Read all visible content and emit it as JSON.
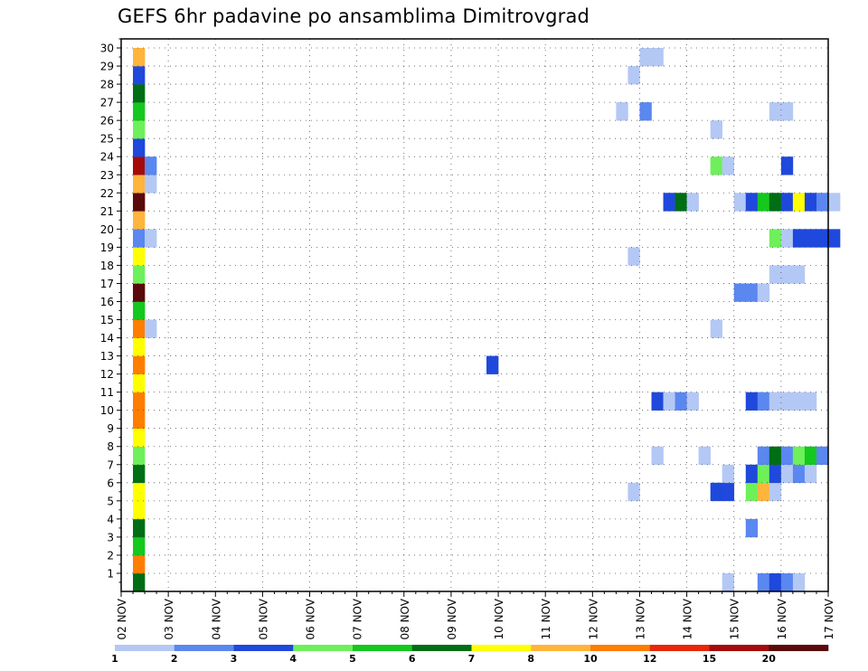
{
  "chart_data": {
    "type": "heatmap",
    "title": "GEFS 6hr padavine po ansamblima Dimitrovgrad",
    "y_tick_labels": [
      "1",
      "2",
      "3",
      "4",
      "5",
      "6",
      "7",
      "8",
      "9",
      "10",
      "11",
      "12",
      "13",
      "14",
      "15",
      "16",
      "17",
      "18",
      "19",
      "20",
      "21",
      "22",
      "23",
      "24",
      "25",
      "26",
      "27",
      "28",
      "29",
      "30"
    ],
    "x_tick_labels": [
      "02 NOV",
      "03 NOV",
      "04 NOV",
      "05 NOV",
      "06 NOV",
      "07 NOV",
      "08 NOV",
      "09 NOV",
      "10 NOV",
      "11 NOV",
      "12 NOV",
      "13 NOV",
      "14 NOV",
      "15 NOV",
      "16 NOV",
      "17 NOV"
    ],
    "grid": true,
    "legend_placement": "bottom",
    "colorbar": {
      "labels": [
        "1",
        "2",
        "3",
        "4",
        "5",
        "6",
        "7",
        "8",
        "10",
        "12",
        "15",
        "20"
      ],
      "colors": [
        "#b4c8f5",
        "#5a87f0",
        "#1f48dc",
        "#6ef05a",
        "#14c81e",
        "#006e14",
        "#ffff00",
        "#ffb43c",
        "#ff7d00",
        "#e6280a",
        "#a50a0a",
        "#5a0a0a"
      ]
    },
    "members_ylim": [
      0,
      30
    ],
    "time_range": [
      "02 NOV",
      "17 NOV"
    ],
    "cells": [
      {
        "m": 0,
        "s": 1,
        "v": 5
      },
      {
        "m": 1,
        "s": 1,
        "v": 8
      },
      {
        "m": 2,
        "s": 1,
        "v": 4
      },
      {
        "m": 3,
        "s": 1,
        "v": 5
      },
      {
        "m": 4,
        "s": 1,
        "v": 6
      },
      {
        "m": 5,
        "s": 1,
        "v": 6
      },
      {
        "m": 6,
        "s": 1,
        "v": 5
      },
      {
        "m": 7,
        "s": 1,
        "v": 3
      },
      {
        "m": 8,
        "s": 1,
        "v": 6
      },
      {
        "m": 9,
        "s": 1,
        "v": 8
      },
      {
        "m": 10,
        "s": 1,
        "v": 8
      },
      {
        "m": 11,
        "s": 1,
        "v": 6
      },
      {
        "m": 12,
        "s": 1,
        "v": 8
      },
      {
        "m": 13,
        "s": 1,
        "v": 6
      },
      {
        "m": 14,
        "s": 1,
        "v": 8
      },
      {
        "m": 15,
        "s": 1,
        "v": 4
      },
      {
        "m": 16,
        "s": 1,
        "v": 11
      },
      {
        "m": 17,
        "s": 1,
        "v": 3
      },
      {
        "m": 18,
        "s": 1,
        "v": 6
      },
      {
        "m": 19,
        "s": 1,
        "v": 1
      },
      {
        "m": 20,
        "s": 1,
        "v": 7
      },
      {
        "m": 21,
        "s": 1,
        "v": 11
      },
      {
        "m": 22,
        "s": 1,
        "v": 7
      },
      {
        "m": 23,
        "s": 1,
        "v": 10
      },
      {
        "m": 24,
        "s": 1,
        "v": 2
      },
      {
        "m": 25,
        "s": 1,
        "v": 3
      },
      {
        "m": 26,
        "s": 1,
        "v": 4
      },
      {
        "m": 27,
        "s": 1,
        "v": 5
      },
      {
        "m": 28,
        "s": 1,
        "v": 2
      },
      {
        "m": 29,
        "s": 1,
        "v": 7
      },
      {
        "m": 14,
        "s": 2,
        "v": 0
      },
      {
        "m": 19,
        "s": 2,
        "v": 0
      },
      {
        "m": 22,
        "s": 2,
        "v": 0
      },
      {
        "m": 23,
        "s": 2,
        "v": 1
      },
      {
        "m": 12,
        "s": 31,
        "v": 2
      },
      {
        "m": 26,
        "s": 42,
        "v": 0
      },
      {
        "m": 26,
        "s": 44,
        "v": 1
      },
      {
        "m": 28,
        "s": 43,
        "v": 0
      },
      {
        "m": 29,
        "s": 44,
        "v": 0
      },
      {
        "m": 29,
        "s": 45,
        "v": 0
      },
      {
        "m": 18,
        "s": 43,
        "v": 0
      },
      {
        "m": 5,
        "s": 43,
        "v": 0
      },
      {
        "m": 10,
        "s": 45,
        "v": 2
      },
      {
        "m": 10,
        "s": 46,
        "v": 0
      },
      {
        "m": 10,
        "s": 47,
        "v": 1
      },
      {
        "m": 10,
        "s": 48,
        "v": 0
      },
      {
        "m": 7,
        "s": 45,
        "v": 0
      },
      {
        "m": 21,
        "s": 46,
        "v": 2
      },
      {
        "m": 21,
        "s": 47,
        "v": 5
      },
      {
        "m": 21,
        "s": 48,
        "v": 0
      },
      {
        "m": 7,
        "s": 49,
        "v": 0
      },
      {
        "m": 25,
        "s": 50,
        "v": 0
      },
      {
        "m": 23,
        "s": 50,
        "v": 3
      },
      {
        "m": 23,
        "s": 51,
        "v": 0
      },
      {
        "m": 14,
        "s": 50,
        "v": 0
      },
      {
        "m": 5,
        "s": 50,
        "v": 2
      },
      {
        "m": 5,
        "s": 51,
        "v": 2
      },
      {
        "m": 6,
        "s": 51,
        "v": 0
      },
      {
        "m": 0,
        "s": 51,
        "v": 0
      },
      {
        "m": 21,
        "s": 52,
        "v": 0
      },
      {
        "m": 16,
        "s": 52,
        "v": 1
      },
      {
        "m": 16,
        "s": 53,
        "v": 1
      },
      {
        "m": 16,
        "s": 54,
        "v": 0
      },
      {
        "m": 21,
        "s": 53,
        "v": 2
      },
      {
        "m": 21,
        "s": 54,
        "v": 4
      },
      {
        "m": 21,
        "s": 55,
        "v": 5
      },
      {
        "m": 21,
        "s": 56,
        "v": 2
      },
      {
        "m": 21,
        "s": 57,
        "v": 6
      },
      {
        "m": 21,
        "s": 58,
        "v": 2
      },
      {
        "m": 21,
        "s": 59,
        "v": 1
      },
      {
        "m": 21,
        "s": 60,
        "v": 0
      },
      {
        "m": 10,
        "s": 53,
        "v": 2
      },
      {
        "m": 10,
        "s": 54,
        "v": 1
      },
      {
        "m": 10,
        "s": 55,
        "v": 0
      },
      {
        "m": 10,
        "s": 56,
        "v": 0
      },
      {
        "m": 10,
        "s": 57,
        "v": 0
      },
      {
        "m": 10,
        "s": 58,
        "v": 0
      },
      {
        "m": 5,
        "s": 53,
        "v": 3
      },
      {
        "m": 5,
        "s": 54,
        "v": 7
      },
      {
        "m": 5,
        "s": 55,
        "v": 0
      },
      {
        "m": 3,
        "s": 53,
        "v": 1
      },
      {
        "m": 6,
        "s": 53,
        "v": 2
      },
      {
        "m": 6,
        "s": 54,
        "v": 3
      },
      {
        "m": 6,
        "s": 55,
        "v": 2
      },
      {
        "m": 6,
        "s": 56,
        "v": 0
      },
      {
        "m": 6,
        "s": 57,
        "v": 1
      },
      {
        "m": 6,
        "s": 58,
        "v": 0
      },
      {
        "m": 7,
        "s": 54,
        "v": 1
      },
      {
        "m": 7,
        "s": 55,
        "v": 5
      },
      {
        "m": 7,
        "s": 56,
        "v": 1
      },
      {
        "m": 7,
        "s": 57,
        "v": 3
      },
      {
        "m": 7,
        "s": 58,
        "v": 4
      },
      {
        "m": 7,
        "s": 59,
        "v": 1
      },
      {
        "m": 0,
        "s": 54,
        "v": 1
      },
      {
        "m": 0,
        "s": 55,
        "v": 2
      },
      {
        "m": 0,
        "s": 56,
        "v": 1
      },
      {
        "m": 0,
        "s": 57,
        "v": 0
      },
      {
        "m": 19,
        "s": 55,
        "v": 3
      },
      {
        "m": 19,
        "s": 56,
        "v": 0
      },
      {
        "m": 19,
        "s": 57,
        "v": 2
      },
      {
        "m": 19,
        "s": 58,
        "v": 2
      },
      {
        "m": 19,
        "s": 59,
        "v": 2
      },
      {
        "m": 19,
        "s": 60,
        "v": 2
      },
      {
        "m": 17,
        "s": 55,
        "v": 0
      },
      {
        "m": 17,
        "s": 56,
        "v": 0
      },
      {
        "m": 17,
        "s": 57,
        "v": 0
      },
      {
        "m": 26,
        "s": 55,
        "v": 0
      },
      {
        "m": 26,
        "s": 56,
        "v": 0
      },
      {
        "m": 23,
        "s": 56,
        "v": 2
      }
    ]
  }
}
